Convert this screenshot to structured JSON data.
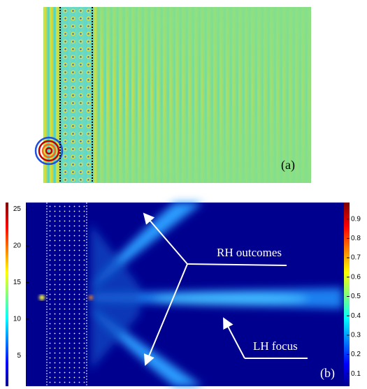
{
  "panel_a": {
    "label": "(a)"
  },
  "panel_b": {
    "label": "(b)",
    "annotations": [
      "RH outcomes",
      "LH focus"
    ],
    "y_axis_ticks": [
      5,
      10,
      15,
      20,
      25
    ],
    "colorbar_ticks": [
      0.1,
      0.2,
      0.3,
      0.4,
      0.5,
      0.6,
      0.7,
      0.8,
      0.9
    ]
  }
}
